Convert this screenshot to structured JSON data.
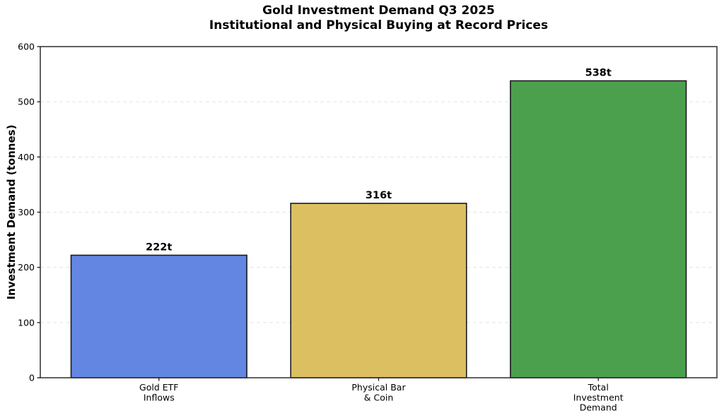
{
  "chart_data": {
    "type": "bar",
    "title_line1": "Gold Investment Demand Q3 2025",
    "title_line2": "Institutional and Physical Buying at Record Prices",
    "ylabel": "Investment Demand (tonnes)",
    "xlabel": "",
    "ylim": [
      0,
      600
    ],
    "yticks": [
      0,
      100,
      200,
      300,
      400,
      500,
      600
    ],
    "grid": "horizontal-dashed",
    "legend_position": "none",
    "categories": [
      {
        "id": "gold-etf-inflows",
        "label_lines": [
          "Gold ETF",
          "Inflows"
        ]
      },
      {
        "id": "physical-bar-coin",
        "label_lines": [
          "Physical Bar",
          "& Coin"
        ]
      },
      {
        "id": "total-investment-demand",
        "label_lines": [
          "Total",
          "Investment",
          "Demand"
        ]
      }
    ],
    "values": [
      222,
      316,
      538
    ],
    "bar_labels": [
      "222t",
      "316t",
      "538t"
    ],
    "bar_colors": [
      "#6286E2",
      "#DCBF60",
      "#4BA04E"
    ],
    "bar_edge_color": "#1a1a1a",
    "grid_color": "#e4e4e4",
    "spine_color": "#3a3a3a",
    "background_color": "#ffffff"
  }
}
